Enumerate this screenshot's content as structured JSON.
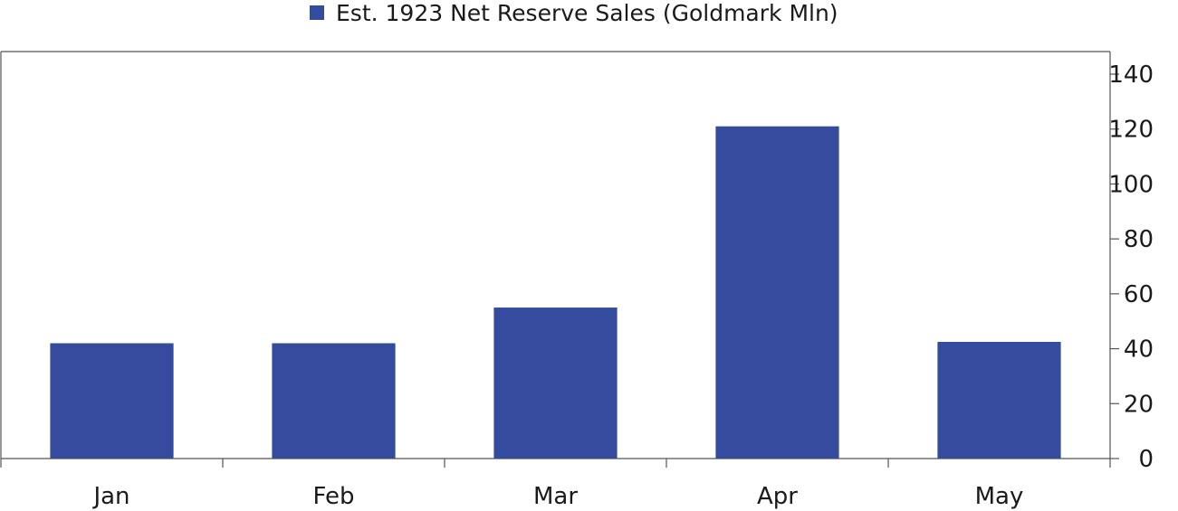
{
  "chart_data": {
    "type": "bar",
    "categories": [
      "Jan",
      "Feb",
      "Mar",
      "Apr",
      "May"
    ],
    "series": [
      {
        "name": "Est. 1923 Net Reserve Sales (Goldmark Mln)",
        "values": [
          42,
          42,
          55,
          121,
          42.5
        ],
        "color": "#354c9e"
      }
    ],
    "ylim": [
      0,
      145
    ],
    "yticks": [
      "0",
      "20",
      "40",
      "60",
      "80",
      "100",
      "120",
      "140"
    ],
    "ytick_values": [
      0,
      20,
      40,
      60,
      80,
      100,
      120,
      140
    ],
    "y_axis_side": "right",
    "grid": false,
    "legend_position": "top-center"
  }
}
